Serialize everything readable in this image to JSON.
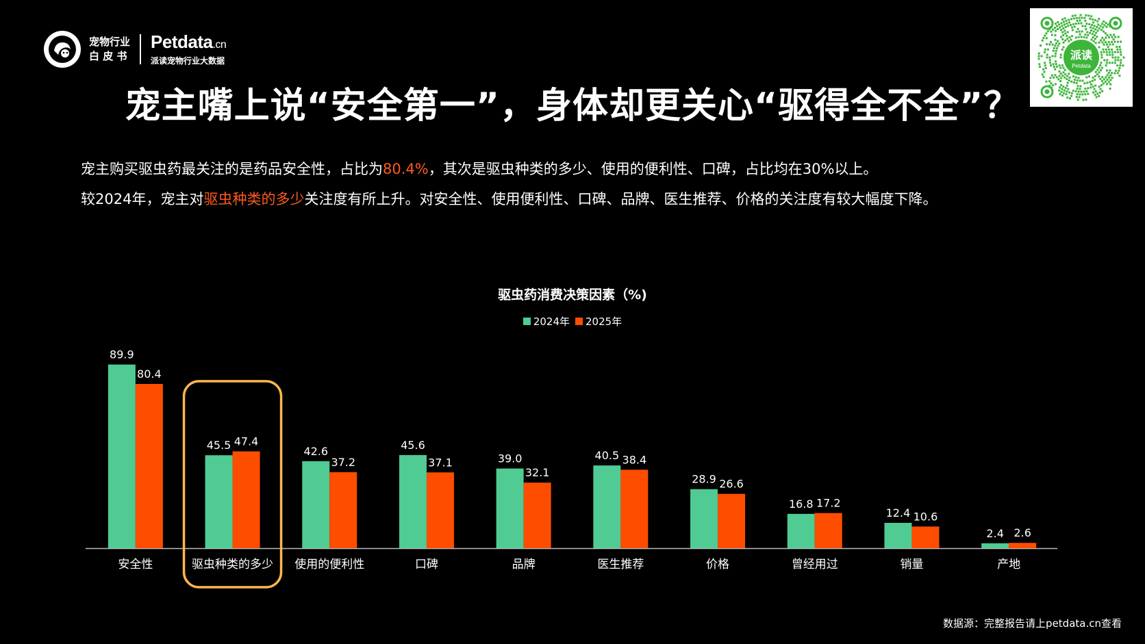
{
  "brand": {
    "book_line1": "宠物行业",
    "book_line2": "白 皮 书",
    "name": "Petdata",
    "name_suffix": ".cn",
    "tagline": "派读宠物行业大数据"
  },
  "qr": {
    "label": "派读",
    "sublabel": "Petdata"
  },
  "title": "宠主嘴上说“安全第一”，身体却更关心“驱得全不全”？",
  "description": {
    "line1_a": "宠主购买驱虫药最关注的是药品安全性，占比为",
    "line1_hl": "80.4%",
    "line1_b": "，其次是驱虫种类的多少、使用的便利性、口碑，占比均在30%以上。",
    "line2_a": "较2024年，宠主对",
    "line2_hl": "驱虫种类的多少",
    "line2_b": "关注度有所上升。对安全性、使用便利性、口碑、品牌、医生推荐、价格的关注度有较大幅度下降。"
  },
  "colors": {
    "series_2024": "#4fcb93",
    "series_2025": "#ff4d00",
    "highlight": "#ff5a1f",
    "highlight_box": "#ffb84d"
  },
  "chart_data": {
    "type": "bar",
    "title": "驱虫药消费决策因素（%)",
    "categories": [
      "安全性",
      "驱虫种类的多少",
      "使用的便利性",
      "口碑",
      "品牌",
      "医生推荐",
      "价格",
      "曾经用过",
      "销量",
      "产地"
    ],
    "series": [
      {
        "name": "2024年",
        "values": [
          89.9,
          45.5,
          42.6,
          45.6,
          39.0,
          40.5,
          28.9,
          16.8,
          12.4,
          2.4
        ]
      },
      {
        "name": "2025年",
        "values": [
          80.4,
          47.4,
          37.2,
          37.1,
          32.1,
          38.4,
          26.6,
          17.2,
          10.6,
          2.6
        ]
      }
    ],
    "highlighted_category": "驱虫种类的多少",
    "legend": "top-center",
    "grid": false
  },
  "source": "数据源：完整报告请上petdata.cn查看"
}
